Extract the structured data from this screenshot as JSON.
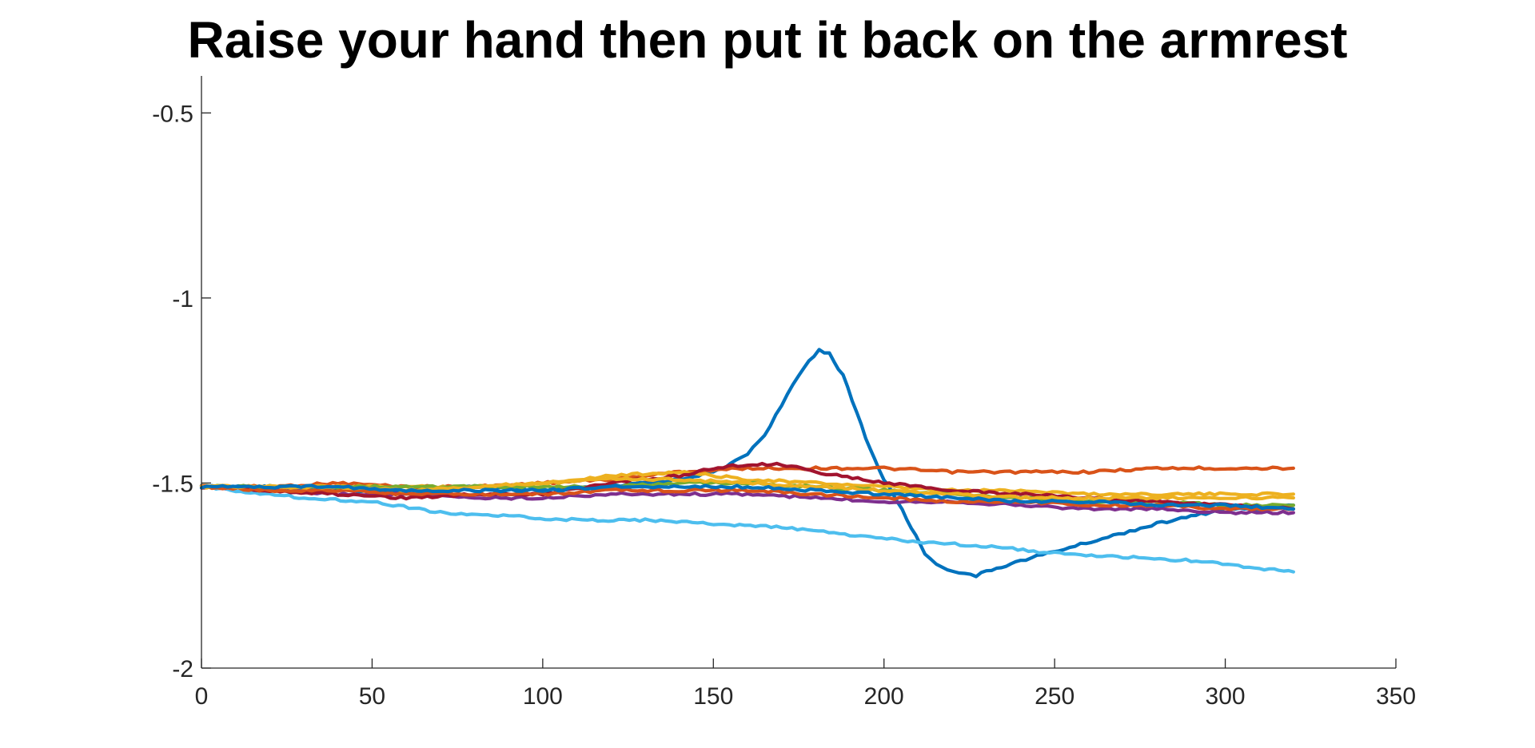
{
  "chart_data": {
    "type": "line",
    "title": "Raise your hand then put it back on the armrest",
    "xlabel": "",
    "ylabel": "",
    "xlim": [
      0,
      350
    ],
    "ylim": [
      -2,
      -0.4
    ],
    "grid": false,
    "xticks": [
      0,
      50,
      100,
      150,
      200,
      250,
      300,
      350
    ],
    "xtick_labels": [
      "0",
      "50",
      "100",
      "150",
      "200",
      "250",
      "300",
      "350"
    ],
    "yticks": [
      -2,
      -1.5,
      -1,
      -0.5
    ],
    "ytick_labels": [
      "-2",
      "-1.5",
      "-1",
      "-0.5"
    ],
    "series": [
      {
        "color": "#0072BD",
        "points": [
          [
            0,
            -1.51
          ],
          [
            20,
            -1.51
          ],
          [
            40,
            -1.52
          ],
          [
            60,
            -1.52
          ],
          [
            80,
            -1.51
          ],
          [
            100,
            -1.52
          ],
          [
            120,
            -1.51
          ],
          [
            130,
            -1.5
          ],
          [
            140,
            -1.49
          ],
          [
            150,
            -1.47
          ],
          [
            155,
            -1.45
          ],
          [
            160,
            -1.42
          ],
          [
            165,
            -1.37
          ],
          [
            170,
            -1.29
          ],
          [
            175,
            -1.21
          ],
          [
            178,
            -1.17
          ],
          [
            181,
            -1.14
          ],
          [
            184,
            -1.15
          ],
          [
            188,
            -1.21
          ],
          [
            192,
            -1.31
          ],
          [
            196,
            -1.41
          ],
          [
            200,
            -1.49
          ],
          [
            204,
            -1.55
          ],
          [
            208,
            -1.62
          ],
          [
            212,
            -1.69
          ],
          [
            217,
            -1.73
          ],
          [
            222,
            -1.74
          ],
          [
            227,
            -1.75
          ],
          [
            233,
            -1.73
          ],
          [
            240,
            -1.71
          ],
          [
            248,
            -1.69
          ],
          [
            256,
            -1.67
          ],
          [
            264,
            -1.65
          ],
          [
            272,
            -1.63
          ],
          [
            280,
            -1.61
          ],
          [
            290,
            -1.59
          ],
          [
            300,
            -1.57
          ],
          [
            310,
            -1.57
          ],
          [
            320,
            -1.56
          ]
        ]
      },
      {
        "color": "#D95319",
        "points": [
          [
            0,
            -1.51
          ],
          [
            20,
            -1.51
          ],
          [
            40,
            -1.5
          ],
          [
            60,
            -1.51
          ],
          [
            80,
            -1.51
          ],
          [
            100,
            -1.5
          ],
          [
            120,
            -1.49
          ],
          [
            140,
            -1.47
          ],
          [
            160,
            -1.46
          ],
          [
            180,
            -1.46
          ],
          [
            200,
            -1.46
          ],
          [
            220,
            -1.47
          ],
          [
            240,
            -1.47
          ],
          [
            260,
            -1.47
          ],
          [
            280,
            -1.46
          ],
          [
            300,
            -1.46
          ],
          [
            320,
            -1.46
          ]
        ]
      },
      {
        "color": "#EDB120",
        "points": [
          [
            0,
            -1.51
          ],
          [
            20,
            -1.51
          ],
          [
            40,
            -1.51
          ],
          [
            60,
            -1.51
          ],
          [
            80,
            -1.51
          ],
          [
            100,
            -1.5
          ],
          [
            120,
            -1.48
          ],
          [
            140,
            -1.47
          ],
          [
            160,
            -1.49
          ],
          [
            180,
            -1.5
          ],
          [
            200,
            -1.51
          ],
          [
            220,
            -1.52
          ],
          [
            240,
            -1.52
          ],
          [
            260,
            -1.53
          ],
          [
            280,
            -1.53
          ],
          [
            300,
            -1.53
          ],
          [
            320,
            -1.53
          ]
        ]
      },
      {
        "color": "#7E2F8E",
        "points": [
          [
            0,
            -1.51
          ],
          [
            20,
            -1.52
          ],
          [
            40,
            -1.53
          ],
          [
            60,
            -1.53
          ],
          [
            80,
            -1.54
          ],
          [
            100,
            -1.54
          ],
          [
            120,
            -1.53
          ],
          [
            140,
            -1.53
          ],
          [
            160,
            -1.53
          ],
          [
            180,
            -1.54
          ],
          [
            200,
            -1.55
          ],
          [
            220,
            -1.55
          ],
          [
            240,
            -1.56
          ],
          [
            260,
            -1.57
          ],
          [
            280,
            -1.57
          ],
          [
            300,
            -1.58
          ],
          [
            320,
            -1.58
          ]
        ]
      },
      {
        "color": "#77AC30",
        "points": [
          [
            0,
            -1.51
          ],
          [
            20,
            -1.51
          ],
          [
            40,
            -1.51
          ],
          [
            60,
            -1.51
          ],
          [
            80,
            -1.51
          ],
          [
            100,
            -1.51
          ],
          [
            120,
            -1.51
          ],
          [
            140,
            -1.5
          ],
          [
            160,
            -1.5
          ],
          [
            180,
            -1.51
          ],
          [
            200,
            -1.52
          ],
          [
            220,
            -1.53
          ],
          [
            240,
            -1.54
          ],
          [
            260,
            -1.55
          ],
          [
            280,
            -1.55
          ],
          [
            300,
            -1.56
          ],
          [
            320,
            -1.56
          ]
        ]
      },
      {
        "color": "#4DBEEE",
        "points": [
          [
            0,
            -1.51
          ],
          [
            10,
            -1.52
          ],
          [
            20,
            -1.53
          ],
          [
            30,
            -1.54
          ],
          [
            50,
            -1.55
          ],
          [
            70,
            -1.58
          ],
          [
            90,
            -1.59
          ],
          [
            110,
            -1.6
          ],
          [
            130,
            -1.6
          ],
          [
            150,
            -1.61
          ],
          [
            170,
            -1.62
          ],
          [
            190,
            -1.64
          ],
          [
            210,
            -1.66
          ],
          [
            230,
            -1.67
          ],
          [
            250,
            -1.69
          ],
          [
            270,
            -1.7
          ],
          [
            290,
            -1.71
          ],
          [
            310,
            -1.73
          ],
          [
            320,
            -1.74
          ]
        ]
      },
      {
        "color": "#A2142F",
        "points": [
          [
            0,
            -1.51
          ],
          [
            20,
            -1.52
          ],
          [
            40,
            -1.53
          ],
          [
            60,
            -1.54
          ],
          [
            80,
            -1.53
          ],
          [
            100,
            -1.53
          ],
          [
            120,
            -1.5
          ],
          [
            140,
            -1.48
          ],
          [
            150,
            -1.46
          ],
          [
            160,
            -1.45
          ],
          [
            170,
            -1.45
          ],
          [
            180,
            -1.47
          ],
          [
            200,
            -1.5
          ],
          [
            220,
            -1.52
          ],
          [
            240,
            -1.53
          ],
          [
            260,
            -1.54
          ],
          [
            280,
            -1.55
          ],
          [
            300,
            -1.56
          ],
          [
            320,
            -1.57
          ]
        ]
      },
      {
        "color": "#D95319",
        "points": [
          [
            0,
            -1.51
          ],
          [
            20,
            -1.52
          ],
          [
            40,
            -1.52
          ],
          [
            60,
            -1.53
          ],
          [
            80,
            -1.53
          ],
          [
            100,
            -1.53
          ],
          [
            120,
            -1.52
          ],
          [
            140,
            -1.52
          ],
          [
            160,
            -1.52
          ],
          [
            180,
            -1.53
          ],
          [
            200,
            -1.54
          ],
          [
            220,
            -1.55
          ],
          [
            240,
            -1.55
          ],
          [
            260,
            -1.56
          ],
          [
            280,
            -1.56
          ],
          [
            300,
            -1.57
          ],
          [
            320,
            -1.57
          ]
        ]
      },
      {
        "color": "#EDB120",
        "points": [
          [
            0,
            -1.51
          ],
          [
            20,
            -1.51
          ],
          [
            40,
            -1.51
          ],
          [
            60,
            -1.52
          ],
          [
            80,
            -1.51
          ],
          [
            100,
            -1.5
          ],
          [
            120,
            -1.49
          ],
          [
            140,
            -1.49
          ],
          [
            160,
            -1.5
          ],
          [
            180,
            -1.51
          ],
          [
            200,
            -1.52
          ],
          [
            220,
            -1.53
          ],
          [
            240,
            -1.54
          ],
          [
            260,
            -1.54
          ],
          [
            280,
            -1.54
          ],
          [
            300,
            -1.54
          ],
          [
            320,
            -1.54
          ]
        ]
      },
      {
        "color": "#0072BD",
        "points": [
          [
            0,
            -1.51
          ],
          [
            20,
            -1.51
          ],
          [
            40,
            -1.51
          ],
          [
            60,
            -1.52
          ],
          [
            80,
            -1.52
          ],
          [
            100,
            -1.52
          ],
          [
            120,
            -1.51
          ],
          [
            140,
            -1.51
          ],
          [
            160,
            -1.51
          ],
          [
            180,
            -1.52
          ],
          [
            200,
            -1.53
          ],
          [
            220,
            -1.54
          ],
          [
            240,
            -1.55
          ],
          [
            260,
            -1.55
          ],
          [
            280,
            -1.56
          ],
          [
            300,
            -1.56
          ],
          [
            320,
            -1.57
          ]
        ]
      }
    ]
  }
}
